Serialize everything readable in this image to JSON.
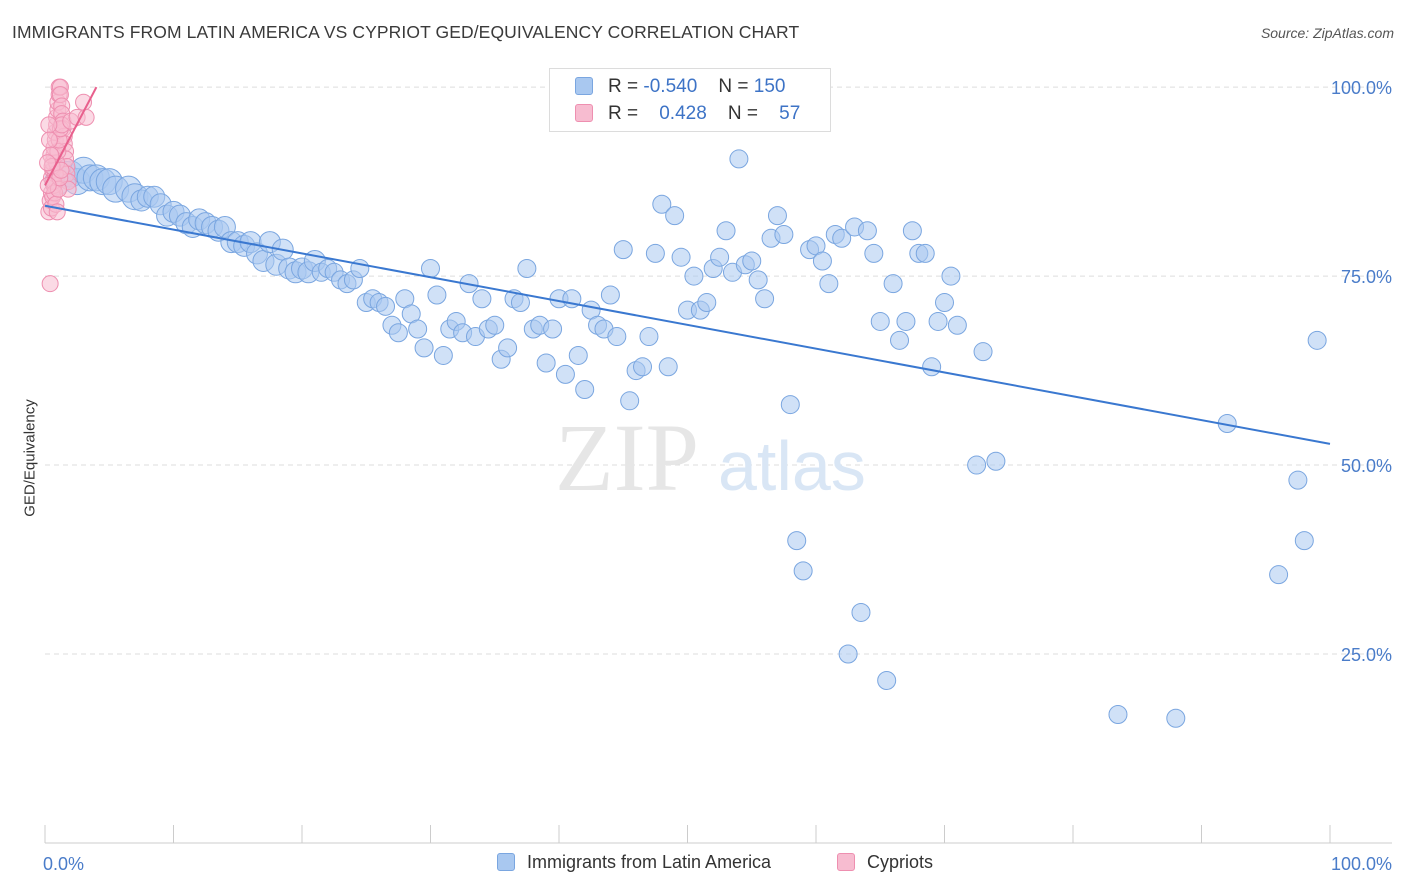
{
  "header": {
    "title": "IMMIGRANTS FROM LATIN AMERICA VS CYPRIOT GED/EQUIVALENCY CORRELATION CHART",
    "source": "Source: ZipAtlas.com"
  },
  "watermark": {
    "zip": "ZIP",
    "atlas": "atlas"
  },
  "legend_top": {
    "rows": [
      {
        "r_label": "R =",
        "r_value": "-0.540",
        "n_label": "N =",
        "n_value": "150"
      },
      {
        "r_label": "R =",
        "r_value": "0.428",
        "n_label": "N =",
        "n_value": "57"
      }
    ]
  },
  "legend_bottom": {
    "items": [
      "Immigrants from Latin America",
      "Cypriots"
    ]
  },
  "chart_data": {
    "type": "scatter",
    "title": "IMMIGRANTS FROM LATIN AMERICA VS CYPRIOT GED/EQUIVALENCY CORRELATION CHART",
    "xlabel": "",
    "ylabel": "GED/Equivalency",
    "xlim": [
      0,
      100
    ],
    "ylim": [
      0,
      102
    ],
    "x_tick_labels": [
      "0.0%",
      "100.0%"
    ],
    "y_ticks": [
      25,
      50,
      75,
      100
    ],
    "y_tick_labels": [
      "25.0%",
      "50.0%",
      "75.0%",
      "100.0%"
    ],
    "grid": true,
    "legend_placement": "bottom",
    "colors": {
      "latin_fill": "#a9c8f0",
      "latin_stroke": "#7aa6e0",
      "latin_line": "#3a78d0",
      "cypriot_fill": "#f7bcd0",
      "cypriot_stroke": "#ee8fb0",
      "cypriot_line": "#e8608d",
      "tick_text": "#4a7cc9",
      "grid": "#dddddd"
    },
    "series": [
      {
        "name": "Immigrants from Latin America",
        "r": -0.54,
        "n": 150,
        "trend": {
          "x": [
            0,
            100
          ],
          "y": [
            84.3,
            52.8
          ]
        },
        "points": [
          [
            1,
            87.5
          ],
          [
            1.5,
            88.5
          ],
          [
            2,
            88.5
          ],
          [
            2.5,
            87.5
          ],
          [
            3,
            89
          ],
          [
            3.5,
            88
          ],
          [
            4,
            88
          ],
          [
            4.5,
            87.5
          ],
          [
            5,
            87.5
          ],
          [
            5.5,
            86.5
          ],
          [
            6.5,
            86.5
          ],
          [
            7,
            85.5
          ],
          [
            7.5,
            85
          ],
          [
            8,
            85.5
          ],
          [
            8.5,
            85.5
          ],
          [
            9,
            84.5
          ],
          [
            9.5,
            83
          ],
          [
            10,
            83.5
          ],
          [
            10.5,
            83
          ],
          [
            11,
            82
          ],
          [
            11.5,
            81.5
          ],
          [
            12,
            82.5
          ],
          [
            12.5,
            82
          ],
          [
            13,
            81.5
          ],
          [
            13.5,
            81
          ],
          [
            14,
            81.5
          ],
          [
            14.5,
            79.5
          ],
          [
            15,
            79.5
          ],
          [
            15.5,
            79
          ],
          [
            16,
            79.5
          ],
          [
            16.5,
            78
          ],
          [
            17,
            77
          ],
          [
            17.5,
            79.5
          ],
          [
            18,
            76.5
          ],
          [
            18.5,
            78.5
          ],
          [
            19,
            76
          ],
          [
            19.5,
            75.5
          ],
          [
            20,
            76
          ],
          [
            20.5,
            75.5
          ],
          [
            21,
            77
          ],
          [
            21.5,
            75.5
          ],
          [
            22,
            76
          ],
          [
            22.5,
            75.5
          ],
          [
            23,
            74.5
          ],
          [
            23.5,
            74
          ],
          [
            24,
            74.5
          ],
          [
            24.5,
            76
          ],
          [
            25,
            71.5
          ],
          [
            25.5,
            72
          ],
          [
            26,
            71.5
          ],
          [
            26.5,
            71
          ],
          [
            27,
            68.5
          ],
          [
            27.5,
            67.5
          ],
          [
            28,
            72
          ],
          [
            28.5,
            70
          ],
          [
            29,
            68
          ],
          [
            29.5,
            65.5
          ],
          [
            30,
            76
          ],
          [
            30.5,
            72.5
          ],
          [
            31,
            64.5
          ],
          [
            31.5,
            68
          ],
          [
            32,
            69
          ],
          [
            32.5,
            67.5
          ],
          [
            33,
            74
          ],
          [
            33.5,
            67
          ],
          [
            34,
            72
          ],
          [
            34.5,
            68
          ],
          [
            35,
            68.5
          ],
          [
            35.5,
            64
          ],
          [
            36,
            65.5
          ],
          [
            36.5,
            72
          ],
          [
            37,
            71.5
          ],
          [
            37.5,
            76
          ],
          [
            38,
            68
          ],
          [
            38.5,
            68.5
          ],
          [
            39,
            63.5
          ],
          [
            39.5,
            68
          ],
          [
            40,
            72
          ],
          [
            40.5,
            62
          ],
          [
            41,
            72
          ],
          [
            41.5,
            64.5
          ],
          [
            42,
            60
          ],
          [
            42.5,
            70.5
          ],
          [
            43,
            68.5
          ],
          [
            43.5,
            68
          ],
          [
            44,
            72.5
          ],
          [
            44.5,
            67
          ],
          [
            45,
            78.5
          ],
          [
            45.5,
            58.5
          ],
          [
            46,
            62.5
          ],
          [
            46.5,
            63
          ],
          [
            47,
            67
          ],
          [
            47.5,
            78
          ],
          [
            48,
            84.5
          ],
          [
            48.5,
            63
          ],
          [
            49,
            83
          ],
          [
            49.5,
            77.5
          ],
          [
            50,
            70.5
          ],
          [
            50.5,
            75
          ],
          [
            51,
            70.5
          ],
          [
            51.5,
            71.5
          ],
          [
            52,
            76
          ],
          [
            52.5,
            77.5
          ],
          [
            53,
            81
          ],
          [
            53.5,
            75.5
          ],
          [
            54,
            90.5
          ],
          [
            54.5,
            76.5
          ],
          [
            55,
            77
          ],
          [
            55.5,
            74.5
          ],
          [
            56,
            72
          ],
          [
            56.5,
            80
          ],
          [
            57,
            83
          ],
          [
            57.5,
            80.5
          ],
          [
            58,
            58
          ],
          [
            58.5,
            40
          ],
          [
            59,
            36
          ],
          [
            59.5,
            78.5
          ],
          [
            60,
            79
          ],
          [
            60.5,
            77
          ],
          [
            61,
            74
          ],
          [
            61.5,
            80.5
          ],
          [
            62,
            80
          ],
          [
            62.5,
            25
          ],
          [
            63,
            81.5
          ],
          [
            63.5,
            30.5
          ],
          [
            64,
            81
          ],
          [
            64.5,
            78
          ],
          [
            65,
            69
          ],
          [
            65.5,
            21.5
          ],
          [
            66,
            74
          ],
          [
            66.5,
            66.5
          ],
          [
            67,
            69
          ],
          [
            67.5,
            81
          ],
          [
            68,
            78
          ],
          [
            68.5,
            78
          ],
          [
            69,
            63
          ],
          [
            69.5,
            69
          ],
          [
            70,
            71.5
          ],
          [
            70.5,
            75
          ],
          [
            71,
            68.5
          ],
          [
            72.5,
            50
          ],
          [
            73,
            65
          ],
          [
            74,
            50.5
          ],
          [
            83.5,
            17
          ],
          [
            88,
            16.5
          ],
          [
            92,
            55.5
          ],
          [
            99,
            66.5
          ],
          [
            96,
            35.5
          ],
          [
            97.5,
            48
          ],
          [
            98,
            40
          ]
        ]
      },
      {
        "name": "Cypriots",
        "r": 0.428,
        "n": 57,
        "trend": {
          "x": [
            0,
            4
          ],
          "y": [
            87,
            100
          ]
        },
        "points": [
          [
            0.3,
            83.5
          ],
          [
            0.4,
            85
          ],
          [
            0.5,
            86
          ],
          [
            0.5,
            88
          ],
          [
            0.6,
            89
          ],
          [
            0.6,
            90
          ],
          [
            0.7,
            91
          ],
          [
            0.7,
            92
          ],
          [
            0.8,
            93
          ],
          [
            0.8,
            94
          ],
          [
            0.9,
            95
          ],
          [
            0.9,
            96
          ],
          [
            1,
            97
          ],
          [
            1,
            98
          ],
          [
            1.1,
            99
          ],
          [
            1.1,
            100
          ],
          [
            1.2,
            100
          ],
          [
            1.2,
            99
          ],
          [
            1.3,
            97.5
          ],
          [
            1.3,
            96.5
          ],
          [
            1.4,
            95.5
          ],
          [
            1.4,
            94.5
          ],
          [
            1.5,
            93.5
          ],
          [
            1.5,
            92.5
          ],
          [
            1.6,
            91.5
          ],
          [
            1.6,
            90.5
          ],
          [
            1.7,
            89.5
          ],
          [
            1.7,
            88.5
          ],
          [
            1.8,
            87.5
          ],
          [
            1.8,
            86.5
          ],
          [
            0.4,
            74
          ],
          [
            0.5,
            84
          ],
          [
            0.6,
            85.5
          ],
          [
            0.7,
            87
          ],
          [
            0.8,
            88.5
          ],
          [
            0.9,
            90
          ],
          [
            1,
            91.5
          ],
          [
            1.1,
            93
          ],
          [
            1.2,
            94.5
          ],
          [
            1.3,
            95
          ],
          [
            0.3,
            95
          ],
          [
            0.35,
            93
          ],
          [
            0.45,
            91
          ],
          [
            0.55,
            89.5
          ],
          [
            0.65,
            87.5
          ],
          [
            0.75,
            86
          ],
          [
            0.85,
            84.5
          ],
          [
            0.95,
            83.5
          ],
          [
            1.05,
            86.5
          ],
          [
            1.15,
            88
          ],
          [
            1.25,
            89
          ],
          [
            2,
            95.5
          ],
          [
            2.5,
            96
          ],
          [
            3,
            98
          ],
          [
            3.2,
            96
          ],
          [
            0.2,
            90
          ],
          [
            0.25,
            87
          ]
        ]
      }
    ]
  }
}
